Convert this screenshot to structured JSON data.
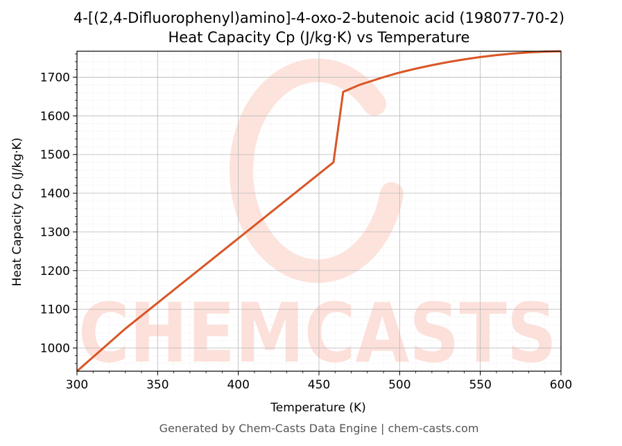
{
  "chart_data": {
    "type": "line",
    "title": "4-[(2,4-Difluorophenyl)amino]-4-oxo-2-butenoic acid (198077-70-2)",
    "subtitle": "Heat Capacity Cp (J/kg·K) vs Temperature",
    "xlabel": "Temperature (K)",
    "ylabel": "Heat Capacity Cp (J/kg·K)",
    "xlim": [
      300,
      600
    ],
    "ylim": [
      940,
      1767
    ],
    "xticks": [
      300,
      350,
      400,
      450,
      500,
      550,
      600
    ],
    "yticks": [
      1000,
      1100,
      1200,
      1300,
      1400,
      1500,
      1600,
      1700
    ],
    "grid": true,
    "line_color": "#d95525",
    "series": [
      {
        "x": [
          300,
          330,
          360,
          390,
          420,
          450,
          459,
          465,
          475,
          490,
          500,
          510,
          520,
          530,
          540,
          550,
          560,
          570,
          580,
          590,
          600
        ],
        "y": [
          940,
          1050,
          1150,
          1250,
          1350,
          1450,
          1480,
          1662,
          1680,
          1700,
          1712,
          1722,
          1731,
          1739,
          1746,
          1752,
          1757,
          1761,
          1764,
          1766,
          1767
        ]
      }
    ]
  },
  "watermark": "CHEMCASTS",
  "footer": "Generated by Chem-Casts Data Engine | chem-casts.com"
}
